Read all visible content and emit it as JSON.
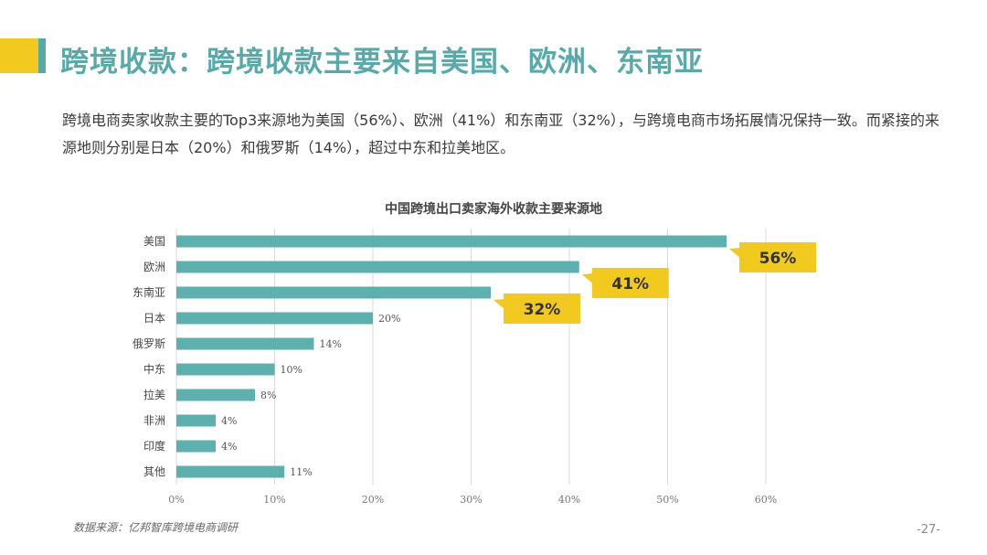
{
  "header": {
    "title": "跨境收款：跨境收款主要来自美国、欧洲、东南亚"
  },
  "summary": "跨境电商卖家收款主要的Top3来源地为美国（56%）、欧洲（41%）和东南亚（32%），与跨境电商市场拓展情况保持一致。而紧接的来源地则分别是日本（20%）和俄罗斯（14%），超过中东和拉美地区。",
  "footer": {
    "source": "数据来源：亿邦智库跨境电商调研",
    "page_number": "-27-"
  },
  "colors": {
    "accent_teal": "#58a9a9",
    "bar_teal": "#5cb0ad",
    "callout_yellow": "#f2c91f",
    "grid": "#d9d9d9"
  },
  "chart_data": {
    "type": "bar",
    "orientation": "horizontal",
    "title": "中国跨境出口卖家海外收款主要来源地",
    "categories": [
      "美国",
      "欧洲",
      "东南亚",
      "日本",
      "俄罗斯",
      "中东",
      "拉美",
      "非洲",
      "印度",
      "其他"
    ],
    "values": [
      56,
      41,
      32,
      20,
      14,
      10,
      8,
      4,
      4,
      11
    ],
    "value_labels": [
      "56%",
      "41%",
      "32%",
      "20%",
      "14%",
      "10%",
      "8%",
      "4%",
      "4%",
      "11%"
    ],
    "highlighted_labels": [
      "56%",
      "41%",
      "32%"
    ],
    "xlim": [
      0,
      60
    ],
    "x_ticks": [
      "0%",
      "10%",
      "20%",
      "30%",
      "40%",
      "50%",
      "60%"
    ],
    "grid": "vertical",
    "xlabel": "",
    "ylabel": ""
  }
}
